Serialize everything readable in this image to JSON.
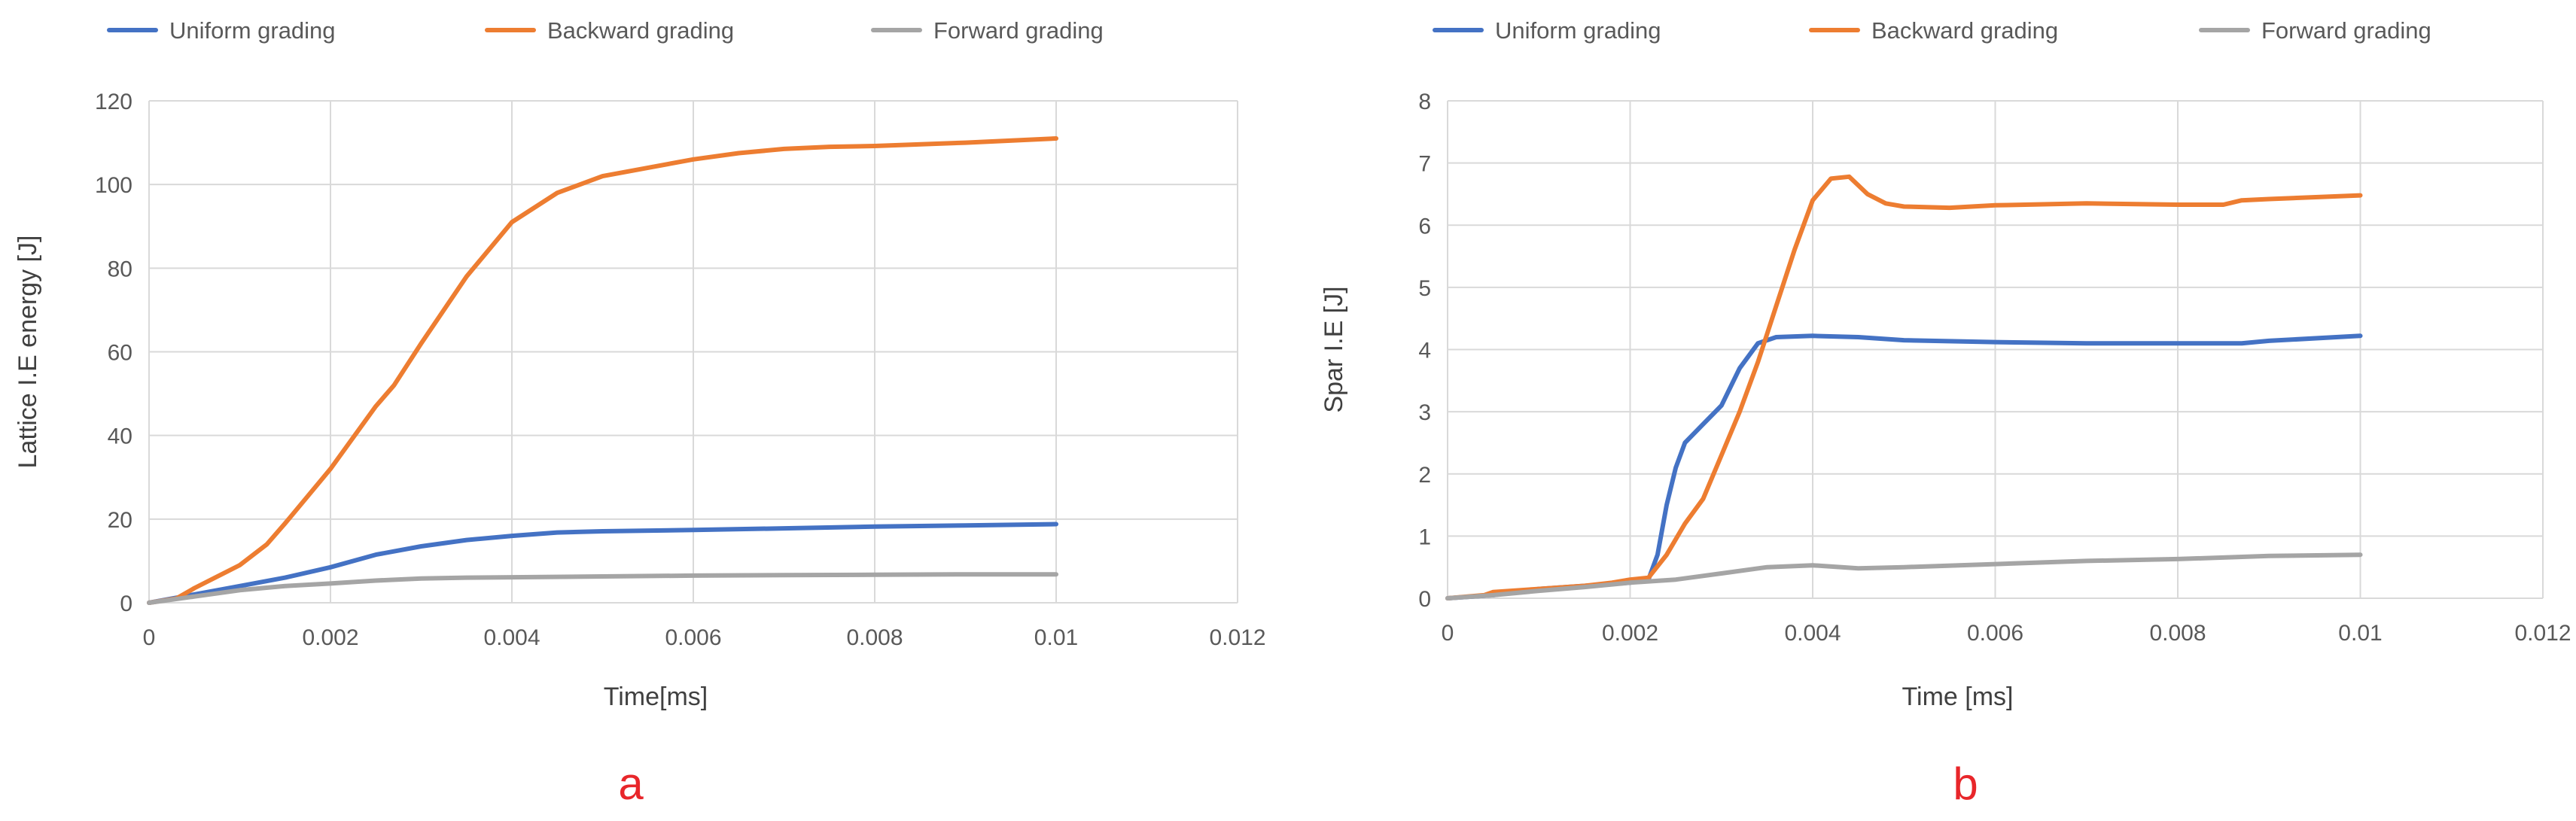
{
  "chart_data": [
    {
      "type": "line",
      "panel_label": "a",
      "title": "",
      "xlabel": "Time[ms]",
      "ylabel": "Lattice I.E energy [J]",
      "xlim": [
        0,
        0.012
      ],
      "ylim": [
        0,
        120
      ],
      "x_ticks": [
        "0",
        "0.002",
        "0.004",
        "0.006",
        "0.008",
        "0.01",
        "0.012"
      ],
      "y_ticks": [
        "0",
        "20",
        "40",
        "60",
        "80",
        "100",
        "120"
      ],
      "grid": true,
      "legend_position": "top",
      "series": [
        {
          "name": "Uniform grading",
          "color": "#4472c4",
          "points": [
            [
              0,
              0
            ],
            [
              0.0005,
              2
            ],
            [
              0.001,
              4
            ],
            [
              0.0015,
              6
            ],
            [
              0.002,
              8.5
            ],
            [
              0.0025,
              11.5
            ],
            [
              0.003,
              13.5
            ],
            [
              0.0035,
              15
            ],
            [
              0.004,
              16
            ],
            [
              0.0045,
              16.8
            ],
            [
              0.005,
              17.1
            ],
            [
              0.006,
              17.4
            ],
            [
              0.007,
              17.8
            ],
            [
              0.008,
              18.2
            ],
            [
              0.009,
              18.5
            ],
            [
              0.01,
              18.8
            ]
          ]
        },
        {
          "name": "Backward grading",
          "color": "#ed7d31",
          "points": [
            [
              0,
              0
            ],
            [
              0.0003,
              1
            ],
            [
              0.0005,
              3.5
            ],
            [
              0.001,
              9
            ],
            [
              0.0013,
              14
            ],
            [
              0.0015,
              19
            ],
            [
              0.002,
              32
            ],
            [
              0.0025,
              47
            ],
            [
              0.0027,
              52
            ],
            [
              0.003,
              62
            ],
            [
              0.0035,
              78
            ],
            [
              0.004,
              91
            ],
            [
              0.0045,
              98
            ],
            [
              0.005,
              102
            ],
            [
              0.0055,
              104
            ],
            [
              0.006,
              106
            ],
            [
              0.0065,
              107.5
            ],
            [
              0.007,
              108.5
            ],
            [
              0.0075,
              109
            ],
            [
              0.008,
              109.2
            ],
            [
              0.009,
              110
            ],
            [
              0.01,
              111
            ]
          ]
        },
        {
          "name": "Forward grading",
          "color": "#a5a5a5",
          "points": [
            [
              0,
              0
            ],
            [
              0.0005,
              1.5
            ],
            [
              0.001,
              3
            ],
            [
              0.0015,
              4
            ],
            [
              0.002,
              4.6
            ],
            [
              0.0025,
              5.3
            ],
            [
              0.003,
              5.8
            ],
            [
              0.0035,
              6
            ],
            [
              0.004,
              6.1
            ],
            [
              0.005,
              6.3
            ],
            [
              0.006,
              6.5
            ],
            [
              0.007,
              6.6
            ],
            [
              0.008,
              6.7
            ],
            [
              0.009,
              6.8
            ],
            [
              0.01,
              6.8
            ]
          ]
        }
      ]
    },
    {
      "type": "line",
      "panel_label": "b",
      "title": "",
      "xlabel": "Time [ms]",
      "ylabel": "Spar I.E [J]",
      "xlim": [
        0,
        0.012
      ],
      "ylim": [
        0,
        8
      ],
      "x_ticks": [
        "0",
        "0.002",
        "0.004",
        "0.006",
        "0.008",
        "0.01",
        "0.012"
      ],
      "y_ticks": [
        "0",
        "1",
        "2",
        "3",
        "4",
        "5",
        "6",
        "7",
        "8"
      ],
      "grid": true,
      "legend_position": "top",
      "series": [
        {
          "name": "Uniform grading",
          "color": "#4472c4",
          "points": [
            [
              0,
              0
            ],
            [
              0.0005,
              0.05
            ],
            [
              0.001,
              0.15
            ],
            [
              0.0015,
              0.2
            ],
            [
              0.002,
              0.25
            ],
            [
              0.0022,
              0.3
            ],
            [
              0.0023,
              0.7
            ],
            [
              0.0024,
              1.5
            ],
            [
              0.0025,
              2.1
            ],
            [
              0.0026,
              2.5
            ],
            [
              0.0028,
              2.8
            ],
            [
              0.003,
              3.1
            ],
            [
              0.0032,
              3.7
            ],
            [
              0.0034,
              4.1
            ],
            [
              0.0036,
              4.2
            ],
            [
              0.004,
              4.22
            ],
            [
              0.0045,
              4.2
            ],
            [
              0.005,
              4.15
            ],
            [
              0.006,
              4.12
            ],
            [
              0.007,
              4.1
            ],
            [
              0.008,
              4.1
            ],
            [
              0.0087,
              4.1
            ],
            [
              0.009,
              4.14
            ],
            [
              0.01,
              4.22
            ]
          ]
        },
        {
          "name": "Backward grading",
          "color": "#ed7d31",
          "points": [
            [
              0,
              0
            ],
            [
              0.0004,
              0.05
            ],
            [
              0.0005,
              0.1
            ],
            [
              0.001,
              0.15
            ],
            [
              0.0015,
              0.2
            ],
            [
              0.0018,
              0.25
            ],
            [
              0.002,
              0.3
            ],
            [
              0.0022,
              0.33
            ],
            [
              0.0024,
              0.7
            ],
            [
              0.0026,
              1.2
            ],
            [
              0.0028,
              1.6
            ],
            [
              0.003,
              2.3
            ],
            [
              0.0032,
              3.0
            ],
            [
              0.0034,
              3.8
            ],
            [
              0.0036,
              4.7
            ],
            [
              0.0038,
              5.6
            ],
            [
              0.004,
              6.4
            ],
            [
              0.0042,
              6.75
            ],
            [
              0.0044,
              6.78
            ],
            [
              0.0046,
              6.5
            ],
            [
              0.0048,
              6.35
            ],
            [
              0.005,
              6.3
            ],
            [
              0.0055,
              6.28
            ],
            [
              0.006,
              6.32
            ],
            [
              0.007,
              6.35
            ],
            [
              0.008,
              6.33
            ],
            [
              0.0085,
              6.33
            ],
            [
              0.0087,
              6.4
            ],
            [
              0.009,
              6.42
            ],
            [
              0.01,
              6.48
            ]
          ]
        },
        {
          "name": "Forward grading",
          "color": "#a5a5a5",
          "points": [
            [
              0,
              0
            ],
            [
              0.0005,
              0.05
            ],
            [
              0.001,
              0.12
            ],
            [
              0.0015,
              0.18
            ],
            [
              0.002,
              0.25
            ],
            [
              0.0025,
              0.3
            ],
            [
              0.003,
              0.4
            ],
            [
              0.0035,
              0.5
            ],
            [
              0.004,
              0.53
            ],
            [
              0.0045,
              0.48
            ],
            [
              0.005,
              0.5
            ],
            [
              0.006,
              0.55
            ],
            [
              0.007,
              0.6
            ],
            [
              0.008,
              0.63
            ],
            [
              0.009,
              0.68
            ],
            [
              0.01,
              0.7
            ]
          ]
        }
      ]
    }
  ]
}
